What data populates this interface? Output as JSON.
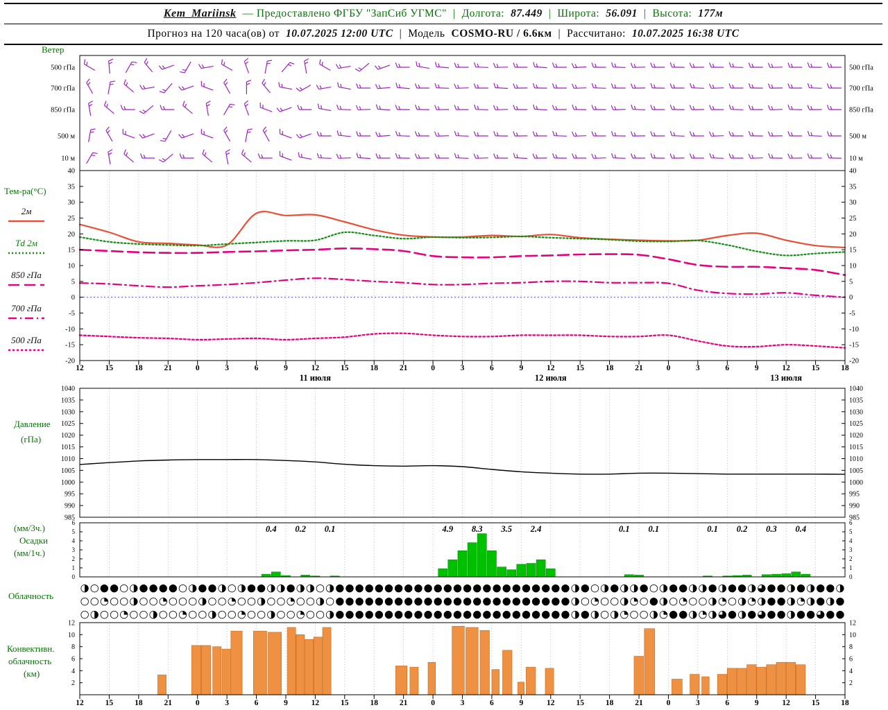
{
  "header": {
    "station": "Kem_Mariinsk",
    "provider": "— Предоставлено ФГБУ \"ЗапСиб УГМС\"",
    "sep": "|",
    "lon_label": "Долгота:",
    "lon_value": "87.449",
    "lat_label": "Широта:",
    "lat_value": "56.091",
    "alt_label": "Высота:",
    "alt_value": "177м",
    "forecast_label": "Прогноз на 120 часа(ов) от",
    "forecast_run": "10.07.2025 12:00 UTC",
    "model_label": "Модель",
    "model_value": "COSMO-RU / 6.6км",
    "calc_label": "Рассчитано:",
    "calc_value": "10.07.2025 16:38 UTC"
  },
  "panels": {
    "wind": {
      "title": "Ветер"
    },
    "temp": {
      "title": "Тем-ра(°C)"
    },
    "pressure": {
      "line1": "Давление",
      "line2": "(гПа)"
    },
    "precip": {
      "line1": "(мм/3ч.)",
      "line2": "Осадки",
      "line3": "(мм/1ч.)"
    },
    "cloud": {
      "title": "Облачность"
    },
    "conv": {
      "line1": "Конвективн.",
      "line2": "облачность",
      "line3": "(км)"
    }
  },
  "chart_data": [
    {
      "type": "wind-barbs",
      "name": "wind",
      "title": "Ветер",
      "color": "#a020c0",
      "levels": [
        "500 гПа",
        "700 гПа",
        "850 гПа",
        "500 м",
        "10 м"
      ],
      "dirs": {
        "500 гПа": [
          150,
          95,
          60,
          130,
          200,
          240,
          190,
          150,
          110,
          80,
          50,
          100,
          150,
          190,
          220,
          200,
          180,
          170,
          175,
          180,
          178,
          182,
          180,
          176,
          180,
          184,
          180,
          178,
          182,
          180,
          179,
          181,
          180,
          178,
          180,
          182,
          180,
          179,
          180
        ],
        "700 гПа": [
          120,
          80,
          140,
          190,
          230,
          200,
          160,
          120,
          90,
          130,
          170,
          210,
          190,
          170,
          180,
          185,
          175,
          180,
          178,
          182,
          180,
          177,
          181,
          179,
          180,
          182,
          178,
          180,
          181,
          179,
          180,
          178,
          182,
          180,
          179,
          181,
          180,
          178,
          180
        ],
        "850 гПа": [
          100,
          140,
          180,
          220,
          180,
          140,
          100,
          60,
          110,
          160,
          200,
          180,
          170,
          178,
          182,
          176,
          180,
          179,
          181,
          180,
          178,
          182,
          180,
          177,
          181,
          179,
          180,
          182,
          178,
          180,
          179,
          181,
          180,
          178,
          180,
          182,
          179,
          181,
          180
        ],
        "500 м": [
          80,
          120,
          160,
          200,
          240,
          200,
          160,
          120,
          80,
          120,
          160,
          200,
          180,
          174,
          180,
          184,
          178,
          180,
          182,
          178,
          180,
          179,
          181,
          180,
          178,
          182,
          180,
          179,
          181,
          180,
          178,
          180,
          182,
          180,
          179,
          181,
          180,
          178,
          180
        ],
        "10 м": [
          60,
          100,
          140,
          180,
          220,
          180,
          140,
          100,
          140,
          180,
          160,
          170,
          178,
          182,
          176,
          180,
          179,
          181,
          180,
          178,
          182,
          180,
          177,
          181,
          179,
          180,
          182,
          178,
          180,
          179,
          181,
          180,
          178,
          180,
          182,
          179,
          181,
          180,
          179
        ]
      }
    },
    {
      "type": "line",
      "name": "temperature",
      "ylabel": "Тем-ра(°C)",
      "ylim": [
        -20,
        40
      ],
      "ytick_step": 5,
      "x_hours_step": 3,
      "x_labels": [
        "12",
        "15",
        "18",
        "21",
        "0",
        "3",
        "6",
        "9",
        "12",
        "15",
        "18",
        "21",
        "0",
        "3",
        "6",
        "9",
        "12",
        "15",
        "18",
        "21",
        "0",
        "3",
        "6",
        "9",
        "12",
        "15",
        "18"
      ],
      "date_labels": [
        {
          "text": "11 июля",
          "hour": 24
        },
        {
          "text": "12 июля",
          "hour": 48
        },
        {
          "text": "13 июля",
          "hour": 72
        }
      ],
      "zero_line": {
        "value": 0,
        "color": "#5050ff"
      },
      "series": [
        {
          "name": "2м",
          "color": "#ea4f35",
          "dash": "",
          "width": 2.2,
          "values": [
            23,
            20.5,
            17.5,
            17,
            16.5,
            16.5,
            26.5,
            25.8,
            26,
            23.8,
            21.3,
            19.6,
            19,
            19,
            19.5,
            19.2,
            19.8,
            18.8,
            18.3,
            18,
            17.8,
            18,
            19.5,
            20.2,
            18,
            16.3,
            15.7
          ]
        },
        {
          "name": "Td 2м",
          "color": "#109010",
          "dash": "2 3",
          "width": 2.2,
          "values": [
            19,
            17.5,
            16.8,
            16.5,
            16.3,
            16.8,
            17.3,
            17.8,
            18,
            20.5,
            19.5,
            18.5,
            19,
            18.8,
            18.9,
            19.2,
            18.8,
            18.5,
            18.2,
            17.7,
            17.6,
            17.9,
            16.5,
            14.5,
            13.2,
            13.8,
            14.3
          ]
        },
        {
          "name": "850 гПа",
          "color": "#e6007e",
          "dash": "16 7",
          "width": 2.6,
          "values": [
            15,
            14.6,
            14.2,
            14,
            14,
            14.3,
            14.5,
            14.8,
            15,
            15.4,
            15.2,
            14.6,
            13,
            12.6,
            12.6,
            13,
            13.2,
            13.5,
            13.6,
            13.4,
            12,
            10.2,
            9.6,
            9.6,
            9.2,
            8.6,
            7
          ]
        },
        {
          "name": "700 гПа",
          "color": "#e6007e",
          "dash": "12 5 2 5",
          "width": 2.2,
          "values": [
            4.5,
            4.2,
            3.6,
            3.2,
            3.6,
            4,
            4.6,
            5.4,
            6,
            5.6,
            5,
            4.6,
            4,
            4,
            4.4,
            4.6,
            5,
            5,
            4.6,
            4.6,
            4.4,
            2.2,
            1.2,
            1,
            1.4,
            0.6,
            0
          ]
        },
        {
          "name": "500 гПа",
          "color": "#e6007e",
          "dash": "3 3",
          "width": 2.2,
          "values": [
            -12,
            -12.4,
            -12.8,
            -13,
            -13.4,
            -13.2,
            -13,
            -13.4,
            -13,
            -12.6,
            -11.6,
            -11.4,
            -12,
            -12.4,
            -12.4,
            -12,
            -12,
            -12,
            -12.4,
            -12.4,
            -12,
            -13.8,
            -15.4,
            -15.6,
            -15,
            -15.4,
            -16
          ]
        }
      ]
    },
    {
      "type": "line",
      "name": "pressure",
      "ylabel": "Давление (гПа)",
      "ylim": [
        985,
        1040
      ],
      "ytick_step": 5,
      "series": [
        {
          "name": "Давление",
          "color": "#000000",
          "dash": "",
          "width": 1.4,
          "values": [
            1007.5,
            1008.3,
            1009,
            1009.4,
            1009.6,
            1009.6,
            1009.6,
            1009.2,
            1008.6,
            1007.6,
            1007,
            1006.8,
            1007,
            1006.6,
            1005.4,
            1004.4,
            1003.8,
            1003.4,
            1003.4,
            1003.8,
            1003.8,
            1003.6,
            1003.4,
            1003.4,
            1003.4,
            1003.4,
            1003.3
          ]
        }
      ]
    },
    {
      "type": "bar",
      "name": "precipitation",
      "ylabel": "Осадки (мм/1ч.)",
      "ylim": [
        0,
        6
      ],
      "color": "#00c000",
      "bars": [
        {
          "h": 19,
          "v": 0.3
        },
        {
          "h": 20,
          "v": 0.55
        },
        {
          "h": 21,
          "v": 0.15
        },
        {
          "h": 23,
          "v": 0.2
        },
        {
          "h": 24,
          "v": 0.1
        },
        {
          "h": 26,
          "v": 0.1
        },
        {
          "h": 37,
          "v": 0.9
        },
        {
          "h": 38,
          "v": 1.9
        },
        {
          "h": 39,
          "v": 2.9
        },
        {
          "h": 40,
          "v": 3.8
        },
        {
          "h": 41,
          "v": 4.8
        },
        {
          "h": 42,
          "v": 2.9
        },
        {
          "h": 43,
          "v": 1.1
        },
        {
          "h": 44,
          "v": 0.8
        },
        {
          "h": 45,
          "v": 1.4
        },
        {
          "h": 46,
          "v": 1.5
        },
        {
          "h": 47,
          "v": 1.9
        },
        {
          "h": 48,
          "v": 0.9
        },
        {
          "h": 56,
          "v": 0.25
        },
        {
          "h": 57,
          "v": 0.2
        },
        {
          "h": 64,
          "v": 0.1
        },
        {
          "h": 66,
          "v": 0.1
        },
        {
          "h": 67,
          "v": 0.15
        },
        {
          "h": 68,
          "v": 0.2
        },
        {
          "h": 70,
          "v": 0.25
        },
        {
          "h": 71,
          "v": 0.3
        },
        {
          "h": 72,
          "v": 0.35
        },
        {
          "h": 73,
          "v": 0.55
        },
        {
          "h": 74,
          "v": 0.3
        }
      ],
      "value_labels": [
        {
          "h": 19.5,
          "text": "0.4"
        },
        {
          "h": 22.5,
          "text": "0.2"
        },
        {
          "h": 25.5,
          "text": "0.1"
        },
        {
          "h": 37.5,
          "text": "4.9"
        },
        {
          "h": 40.5,
          "text": "8.3"
        },
        {
          "h": 43.5,
          "text": "3.5"
        },
        {
          "h": 46.5,
          "text": "2.4"
        },
        {
          "h": 55.5,
          "text": "0.1"
        },
        {
          "h": 58.5,
          "text": "0.1"
        },
        {
          "h": 64.5,
          "text": "0.1"
        },
        {
          "h": 67.5,
          "text": "0.2"
        },
        {
          "h": 70.5,
          "text": "0.3"
        },
        {
          "h": 73.5,
          "text": "0.4"
        }
      ]
    },
    {
      "type": "cloud-symbols",
      "name": "cloudiness",
      "rows": [
        "◑○●●○◑●●●●○◑●●◑○◑●●◑◑●◑◑○◑●●●●●●●●●●●●●●●●●●●●●●●●◑●○◑●◑◑●○◑●●◑◑●◑●●◑◕●●◑●◑●●◑",
        "○○◔○○◑○○◔○○○◑○○◔○○◑○○◔○○◑○●●●●●●●●●●●●●●●●●●●●●●●●◑○◔○○◑◔○●◑○◔○○◑◔○◑◔◑●●◑◔◑●◑●",
        "○◑○○◔○○◑○○◔○○◑○○◔○○◑○○◔○○◑●●●●●●●●●●●●●●●●●●●●●●●●◑●◑○◑◔○○◑◔●●◑◔◑◕●◑●◕●●◑●●◕●●"
      ]
    },
    {
      "type": "bar",
      "name": "convective-cloudiness",
      "ylabel": "Конвективн. облачность (км)",
      "ylim": [
        0,
        12
      ],
      "ytick_step": 2,
      "color": "#ef9143",
      "bars": [
        {
          "h": 8.4,
          "w": 0.9,
          "v": 3.3
        },
        {
          "h": 11.9,
          "w": 1,
          "v": 8.2
        },
        {
          "h": 12.9,
          "w": 1,
          "v": 8.2
        },
        {
          "h": 14,
          "w": 0.9,
          "v": 8.0
        },
        {
          "h": 15,
          "w": 1,
          "v": 7.6
        },
        {
          "h": 16,
          "w": 1.2,
          "v": 10.6
        },
        {
          "h": 18.4,
          "w": 1.4,
          "v": 10.6
        },
        {
          "h": 19.9,
          "w": 1.4,
          "v": 10.4
        },
        {
          "h": 21.6,
          "w": 0.9,
          "v": 11.2
        },
        {
          "h": 22.5,
          "w": 0.9,
          "v": 10.0
        },
        {
          "h": 23.4,
          "w": 0.9,
          "v": 9.2
        },
        {
          "h": 24.3,
          "w": 0.9,
          "v": 9.6
        },
        {
          "h": 25.2,
          "w": 0.9,
          "v": 11.2
        },
        {
          "h": 32.8,
          "w": 1.2,
          "v": 4.8
        },
        {
          "h": 34.1,
          "w": 0.9,
          "v": 4.6
        },
        {
          "h": 35.9,
          "w": 0.8,
          "v": 5.4
        },
        {
          "h": 38.6,
          "w": 1.3,
          "v": 11.4
        },
        {
          "h": 40,
          "w": 1.3,
          "v": 11.2
        },
        {
          "h": 41.3,
          "w": 1,
          "v": 10.7
        },
        {
          "h": 42.4,
          "w": 0.8,
          "v": 4.2
        },
        {
          "h": 43.6,
          "w": 1,
          "v": 7.4
        },
        {
          "h": 45,
          "w": 0.7,
          "v": 2.1
        },
        {
          "h": 46,
          "w": 1,
          "v": 4.6
        },
        {
          "h": 47.9,
          "w": 0.9,
          "v": 4.4
        },
        {
          "h": 57,
          "w": 1,
          "v": 6.4
        },
        {
          "h": 58.1,
          "w": 1.1,
          "v": 11
        },
        {
          "h": 60.9,
          "w": 1.1,
          "v": 2.6
        },
        {
          "h": 62.7,
          "w": 1,
          "v": 3.4
        },
        {
          "h": 63.8,
          "w": 0.8,
          "v": 3.0
        },
        {
          "h": 65.5,
          "w": 1,
          "v": 3.4
        },
        {
          "h": 66.5,
          "w": 1,
          "v": 4.4
        },
        {
          "h": 67.5,
          "w": 1,
          "v": 4.4
        },
        {
          "h": 68.5,
          "w": 1,
          "v": 5
        },
        {
          "h": 69.5,
          "w": 1,
          "v": 4.6
        },
        {
          "h": 70.5,
          "w": 1,
          "v": 5
        },
        {
          "h": 71.5,
          "w": 1,
          "v": 5.4
        },
        {
          "h": 72.5,
          "w": 1,
          "v": 5.4
        },
        {
          "h": 73.5,
          "w": 1,
          "v": 5
        }
      ]
    }
  ]
}
